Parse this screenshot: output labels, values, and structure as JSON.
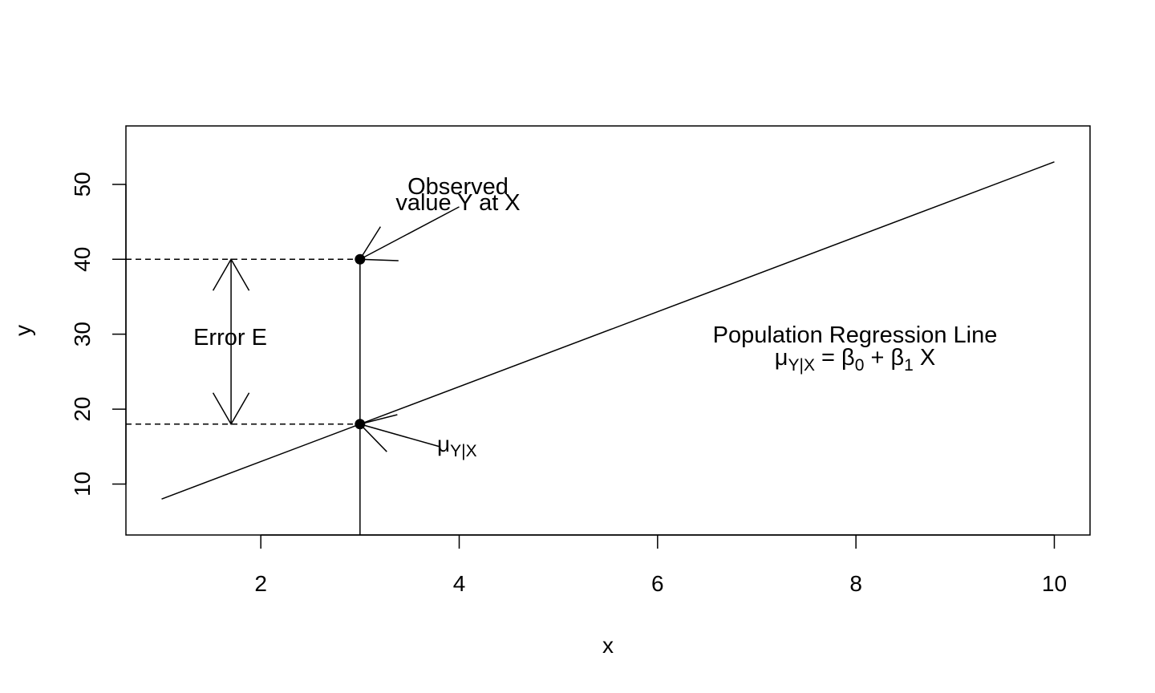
{
  "chart_data": {
    "type": "line",
    "xlabel": "x",
    "ylabel": "y",
    "xlim": [
      0.64,
      10.36
    ],
    "ylim": [
      3.2,
      57.8
    ],
    "x_ticks": [
      2,
      4,
      6,
      8,
      10
    ],
    "y_ticks": [
      10,
      20,
      30,
      40,
      50
    ],
    "x_tick_labels": [
      "2",
      "4",
      "6",
      "8",
      "10"
    ],
    "y_tick_labels": [
      "10",
      "20",
      "30",
      "40",
      "50"
    ],
    "grid": false,
    "series": [
      {
        "x": [
          1,
          10
        ],
        "y": [
          8,
          53
        ]
      }
    ],
    "points": [
      {
        "x": 3,
        "y": 40
      },
      {
        "x": 3,
        "y": 18
      }
    ],
    "vertical_line": {
      "x": 3
    },
    "dashed_segments": [
      {
        "x0": 0.64,
        "x1": 3,
        "y": 40
      },
      {
        "x0": 0.64,
        "x1": 3,
        "y": 18
      }
    ],
    "error_arrow": {
      "x": 1.7,
      "y0": 18,
      "y1": 40
    },
    "annotations": {
      "observed_line1": "Observed",
      "observed_line2": "value Y at X",
      "error_label": "Error E",
      "regression_title": "Population Regression Line",
      "regression_eq_mu": "μ",
      "regression_eq_mu_sub": "Y|X",
      "regression_eq_eq": " = ",
      "regression_eq_beta0": "β",
      "regression_eq_beta0_sub": "0",
      "regression_eq_plus": " + ",
      "regression_eq_beta1": "β",
      "regression_eq_beta1_sub": "1",
      "regression_eq_x": " X",
      "mu_label": "μ",
      "mu_label_sub": "Y|X"
    },
    "observed_arrow": {
      "from": [
        4,
        47
      ],
      "to": [
        3,
        40
      ]
    },
    "mu_arrow": {
      "from": [
        3.8,
        15
      ],
      "to": [
        3,
        18
      ]
    }
  }
}
